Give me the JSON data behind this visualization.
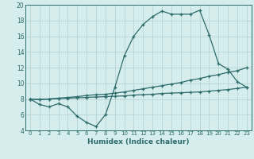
{
  "line1_x": [
    0,
    1,
    2,
    3,
    4,
    5,
    6,
    7,
    8,
    9,
    10,
    11,
    12,
    13,
    14,
    15,
    16,
    17,
    18,
    19,
    20,
    21,
    22,
    23
  ],
  "line1_y": [
    8.0,
    7.3,
    7.0,
    7.4,
    7.0,
    5.8,
    5.0,
    4.5,
    6.0,
    9.5,
    13.5,
    16.0,
    17.5,
    18.5,
    19.2,
    18.8,
    18.8,
    18.8,
    19.3,
    16.2,
    12.5,
    11.8,
    10.2,
    9.5
  ],
  "line2_x": [
    0,
    1,
    2,
    3,
    4,
    5,
    6,
    7,
    8,
    9,
    10,
    11,
    12,
    13,
    14,
    15,
    16,
    17,
    18,
    19,
    20,
    21,
    22,
    23
  ],
  "line2_y": [
    8.0,
    7.9,
    8.0,
    8.1,
    8.2,
    8.3,
    8.45,
    8.55,
    8.6,
    8.75,
    8.9,
    9.1,
    9.3,
    9.5,
    9.7,
    9.9,
    10.1,
    10.4,
    10.6,
    10.9,
    11.1,
    11.4,
    11.6,
    12.0
  ],
  "line3_x": [
    0,
    1,
    2,
    3,
    4,
    5,
    6,
    7,
    8,
    9,
    10,
    11,
    12,
    13,
    14,
    15,
    16,
    17,
    18,
    19,
    20,
    21,
    22,
    23
  ],
  "line3_y": [
    8.0,
    7.95,
    8.0,
    8.05,
    8.1,
    8.15,
    8.2,
    8.25,
    8.3,
    8.35,
    8.4,
    8.5,
    8.55,
    8.6,
    8.7,
    8.75,
    8.8,
    8.85,
    8.9,
    9.0,
    9.1,
    9.2,
    9.35,
    9.5
  ],
  "line_color": "#2e6b6b",
  "bg_color": "#d6eded",
  "grid_color": "#b8d4d4",
  "xlabel": "Humidex (Indice chaleur)",
  "ylim": [
    4,
    20
  ],
  "xlim": [
    -0.5,
    23.5
  ],
  "yticks": [
    4,
    6,
    8,
    10,
    12,
    14,
    16,
    18,
    20
  ],
  "xticks": [
    0,
    1,
    2,
    3,
    4,
    5,
    6,
    7,
    8,
    9,
    10,
    11,
    12,
    13,
    14,
    15,
    16,
    17,
    18,
    19,
    20,
    21,
    22,
    23
  ],
  "marker": "+"
}
